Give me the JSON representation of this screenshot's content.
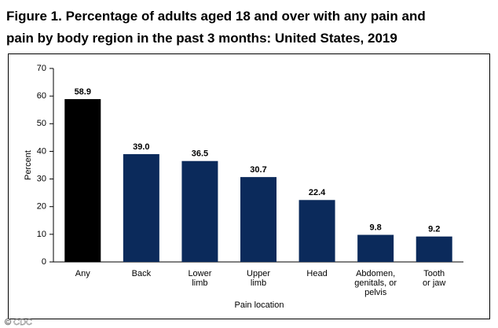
{
  "chart_data": {
    "type": "bar",
    "title_lines": [
      "Figure 1. Percentage of adults aged 18 and over with any pain and",
      "pain by body region in the past 3 months: United States, 2019"
    ],
    "categories": [
      [
        "Any"
      ],
      [
        "Back"
      ],
      [
        "Lower",
        "limb"
      ],
      [
        "Upper",
        "limb"
      ],
      [
        "Head"
      ],
      [
        "Abdomen,",
        "genitals, or",
        "pelvis"
      ],
      [
        "Tooth",
        "or jaw"
      ]
    ],
    "values": [
      58.9,
      39.0,
      36.5,
      30.7,
      22.4,
      9.8,
      9.2
    ],
    "value_labels": [
      "58.9",
      "39.0",
      "36.5",
      "30.7",
      "22.4",
      "9.8",
      "9.2"
    ],
    "colors": [
      "#000000",
      "#0b2a5b",
      "#0b2a5b",
      "#0b2a5b",
      "#0b2a5b",
      "#0b2a5b",
      "#0b2a5b"
    ],
    "ylim": [
      0,
      70
    ],
    "yticks": [
      0,
      10,
      20,
      30,
      40,
      50,
      60,
      70
    ],
    "y_label": "Percent",
    "x_label": "Pain location",
    "watermark": "© CDC"
  }
}
